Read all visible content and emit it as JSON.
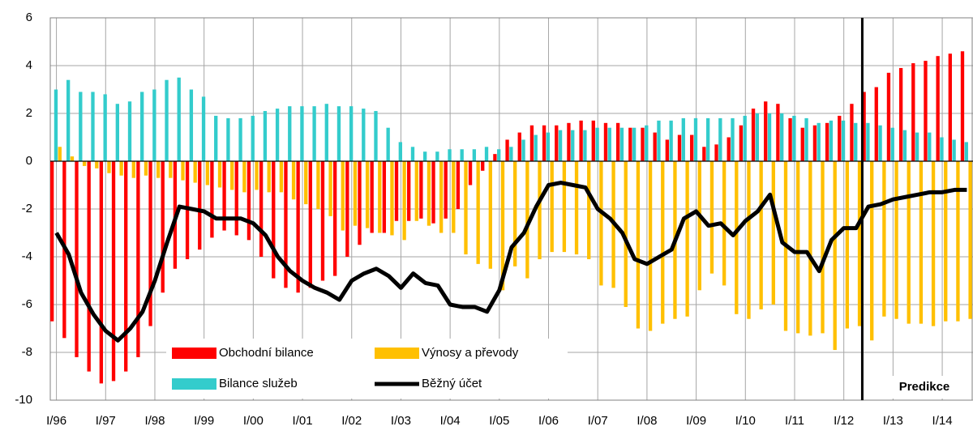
{
  "chart_data": {
    "type": "bar_line",
    "categories": [
      "I/96",
      null,
      null,
      null,
      "I/97",
      null,
      null,
      null,
      "I/98",
      null,
      null,
      null,
      "I/99",
      null,
      null,
      null,
      "I/00",
      null,
      null,
      null,
      "I/01",
      null,
      null,
      null,
      "I/02",
      null,
      null,
      null,
      "I/03",
      null,
      null,
      null,
      "I/04",
      null,
      null,
      null,
      "I/05",
      null,
      null,
      null,
      "I/06",
      null,
      null,
      null,
      "I/07",
      null,
      null,
      null,
      "I/08",
      null,
      null,
      null,
      "I/09",
      null,
      null,
      null,
      "I/10",
      null,
      null,
      null,
      "I/11",
      null,
      null,
      null,
      "I/12",
      null,
      null,
      null,
      "I/13",
      null,
      null,
      null,
      "I/14",
      null,
      null
    ],
    "series": [
      {
        "name": "Obchodní bilance",
        "kind": "bar",
        "color": "#ff0000",
        "values": [
          -6.7,
          -7.4,
          -8.2,
          -8.8,
          -9.3,
          -9.2,
          -8.8,
          -8.2,
          -6.9,
          -5.5,
          -4.5,
          -4.1,
          -3.7,
          -3.2,
          -2.9,
          -3.1,
          -3.3,
          -4.0,
          -4.9,
          -5.3,
          -5.5,
          -5.3,
          -5.0,
          -4.8,
          -4.0,
          -3.5,
          -3.0,
          -3.0,
          -2.5,
          -2.5,
          -2.4,
          -2.6,
          -2.4,
          -2.0,
          -1.0,
          -0.4,
          0.3,
          0.9,
          1.2,
          1.5,
          1.5,
          1.5,
          1.6,
          1.7,
          1.7,
          1.6,
          1.6,
          1.4,
          1.4,
          1.2,
          0.9,
          1.1,
          1.1,
          0.6,
          0.7,
          1.0,
          1.5,
          2.2,
          2.5,
          2.4,
          1.8,
          1.4,
          1.5,
          1.6,
          1.9,
          2.4,
          2.9,
          3.1,
          3.7,
          3.9,
          4.1,
          4.2,
          4.4,
          4.5,
          4.6
        ]
      },
      {
        "name": "Výnosy a převody",
        "kind": "bar",
        "color": "#ffc000",
        "values": [
          0.6,
          0.2,
          -0.2,
          -0.3,
          -0.5,
          -0.6,
          -0.7,
          -0.6,
          -0.7,
          -0.7,
          -0.8,
          -0.9,
          -1.0,
          -1.1,
          -1.2,
          -1.3,
          -1.2,
          -1.3,
          -1.3,
          -1.6,
          -1.8,
          -2.0,
          -2.3,
          -2.9,
          -2.7,
          -2.8,
          -3.0,
          -3.1,
          -3.3,
          -2.5,
          -2.7,
          -3.0,
          -3.0,
          -3.9,
          -4.3,
          -4.5,
          -5.4,
          -4.4,
          -4.9,
          -4.1,
          -3.8,
          -3.8,
          -3.9,
          -4.1,
          -5.2,
          -5.3,
          -6.1,
          -7.0,
          -7.1,
          -6.8,
          -6.6,
          -6.5,
          -5.4,
          -4.7,
          -5.2,
          -6.4,
          -6.6,
          -6.2,
          -6.0,
          -7.1,
          -7.2,
          -7.3,
          -7.2,
          -7.9,
          -7.0,
          -6.9,
          -7.5,
          -6.5,
          -6.6,
          -6.8,
          -6.8,
          -6.9,
          -6.7,
          -6.7,
          -6.6
        ]
      },
      {
        "name": "Bilance služeb",
        "kind": "bar",
        "color": "#33cccc",
        "values": [
          3.0,
          3.4,
          2.9,
          2.9,
          2.8,
          2.4,
          2.5,
          2.9,
          3.0,
          3.4,
          3.5,
          3.0,
          2.7,
          1.9,
          1.8,
          1.8,
          1.9,
          2.1,
          2.2,
          2.3,
          2.3,
          2.3,
          2.4,
          2.3,
          2.3,
          2.2,
          2.1,
          1.4,
          0.8,
          0.6,
          0.4,
          0.4,
          0.5,
          0.5,
          0.5,
          0.6,
          0.5,
          0.6,
          0.9,
          1.1,
          1.2,
          1.3,
          1.3,
          1.3,
          1.4,
          1.4,
          1.4,
          1.4,
          1.5,
          1.7,
          1.7,
          1.8,
          1.8,
          1.8,
          1.8,
          1.8,
          1.9,
          2.0,
          2.0,
          2.0,
          1.9,
          1.8,
          1.6,
          1.7,
          1.7,
          1.6,
          1.6,
          1.5,
          1.4,
          1.3,
          1.2,
          1.2,
          1.0,
          0.9,
          0.8
        ]
      },
      {
        "name": "Běžný účet",
        "kind": "line",
        "color": "#000000",
        "values": [
          -3.0,
          -3.9,
          -5.5,
          -6.4,
          -7.1,
          -7.5,
          -7.0,
          -6.3,
          -5.0,
          -3.4,
          -1.9,
          -2.0,
          -2.1,
          -2.4,
          -2.4,
          -2.4,
          -2.6,
          -3.1,
          -4.0,
          -4.6,
          -5.0,
          -5.3,
          -5.5,
          -5.8,
          -5.0,
          -4.7,
          -4.5,
          -4.8,
          -5.3,
          -4.7,
          -5.1,
          -5.2,
          -6.0,
          -6.1,
          -6.1,
          -6.3,
          -5.4,
          -3.6,
          -3.0,
          -1.9,
          -1.0,
          -0.9,
          -1.0,
          -1.1,
          -2.0,
          -2.4,
          -3.0,
          -4.1,
          -4.3,
          -4.0,
          -3.7,
          -2.4,
          -2.1,
          -2.7,
          -2.6,
          -3.1,
          -2.5,
          -2.1,
          -1.4,
          -3.4,
          -3.8,
          -3.8,
          -4.6,
          -3.3,
          -2.8,
          -2.8,
          -1.9,
          -1.8,
          -1.6,
          -1.5,
          -1.4,
          -1.3,
          -1.3,
          -1.2,
          -1.2
        ]
      }
    ],
    "ylim": [
      -10,
      6
    ],
    "yticks": [
      -10,
      -8,
      -6,
      -4,
      -2,
      0,
      2,
      4,
      6
    ],
    "grid": true,
    "vline": {
      "x": 66,
      "label": "Predikce"
    }
  }
}
